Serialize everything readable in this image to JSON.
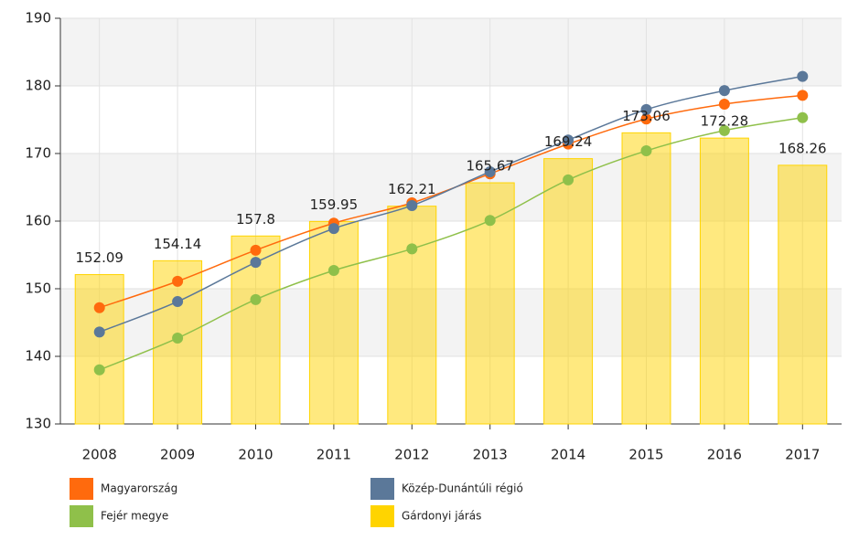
{
  "chart_data": {
    "type": "combo",
    "categories": [
      "2008",
      "2009",
      "2010",
      "2011",
      "2012",
      "2013",
      "2014",
      "2015",
      "2016",
      "2017"
    ],
    "series": [
      {
        "name": "Magyarország",
        "type": "line",
        "color": "#ff6a0d",
        "values": [
          147.2,
          151.1,
          155.7,
          159.7,
          162.7,
          167.0,
          171.4,
          175.1,
          177.3,
          178.6
        ]
      },
      {
        "name": "Közép-Dunántúli régió",
        "type": "line",
        "color": "#5b7899",
        "values": [
          143.6,
          148.1,
          153.9,
          158.9,
          162.3,
          167.3,
          172.0,
          176.5,
          179.3,
          181.4
        ]
      },
      {
        "name": "Fejér megye",
        "type": "line",
        "color": "#8fc04a",
        "values": [
          138.0,
          142.7,
          148.4,
          152.7,
          155.9,
          160.1,
          166.1,
          170.4,
          173.4,
          175.3
        ]
      },
      {
        "name": "Gárdonyi járás",
        "type": "bar",
        "color": "#ffd400",
        "values": [
          152.09,
          154.14,
          157.8,
          159.95,
          162.21,
          165.67,
          169.24,
          173.06,
          172.28,
          168.26
        ]
      }
    ],
    "ylim": [
      130,
      190
    ],
    "yticks": [
      130,
      140,
      150,
      160,
      170,
      180,
      190
    ],
    "grid": true
  }
}
